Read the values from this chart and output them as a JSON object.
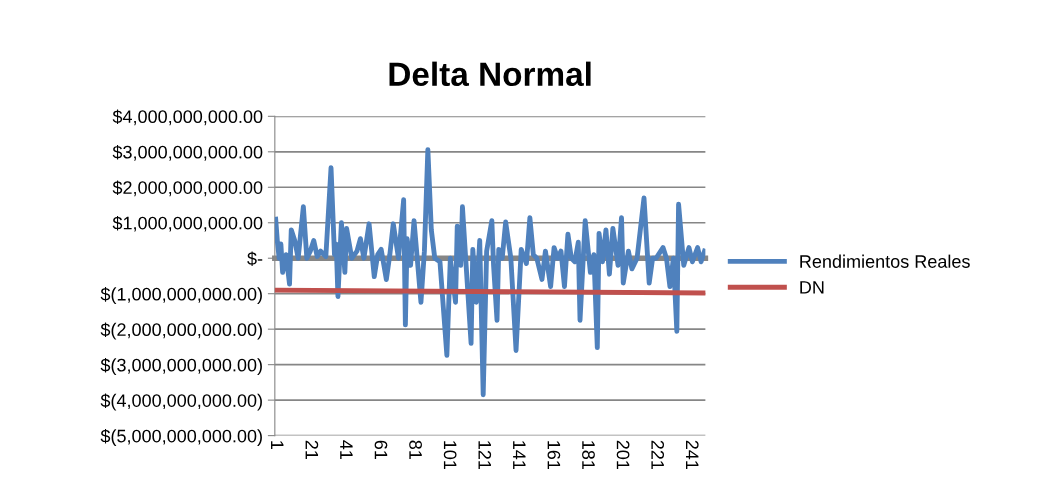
{
  "chart_data": {
    "type": "line",
    "title": "Delta Normal",
    "xlim": [
      0.5,
      249.5
    ],
    "xticks": [
      1,
      21,
      41,
      61,
      81,
      101,
      121,
      141,
      161,
      181,
      201,
      221,
      241
    ],
    "ylim": [
      -5000000000,
      4000000000
    ],
    "yticks": [
      {
        "value": 4000000000,
        "label": "$4,000,000,000.00"
      },
      {
        "value": 3000000000,
        "label": "$3,000,000,000.00"
      },
      {
        "value": 2000000000,
        "label": "$2,000,000,000.00"
      },
      {
        "value": 1000000000,
        "label": "$1,000,000,000.00"
      },
      {
        "value": 0,
        "label": "$-"
      },
      {
        "value": -1000000000,
        "label": "$(1,000,000,000.00)"
      },
      {
        "value": -2000000000,
        "label": "$(2,000,000,000.00)"
      },
      {
        "value": -3000000000,
        "label": "$(3,000,000,000.00)"
      },
      {
        "value": -4000000000,
        "label": "$(4,000,000,000.00)"
      },
      {
        "value": -5000000000,
        "label": "$(5,000,000,000.00)"
      }
    ],
    "grid": "y",
    "legend": "right",
    "marker": "none",
    "line_style": "solid",
    "series": [
      {
        "name": "Rendimientos Reales",
        "color": "#4f81bd",
        "x": [
          1,
          2,
          3,
          4,
          5,
          7,
          9,
          10,
          12,
          14,
          17,
          19,
          21,
          23,
          25,
          27,
          30,
          33,
          35,
          36,
          37,
          39,
          41,
          42,
          45,
          48,
          50,
          52,
          55,
          58,
          60,
          62,
          65,
          67,
          69,
          72,
          75,
          76,
          77,
          79,
          81,
          85,
          87,
          89,
          91,
          93,
          96,
          100,
          102,
          105,
          106,
          108,
          109,
          111,
          114,
          115,
          117,
          119,
          121,
          123,
          126,
          127,
          129,
          130,
          132,
          134,
          137,
          140,
          143,
          146,
          148,
          150,
          152,
          155,
          157,
          160,
          162,
          164,
          166,
          168,
          170,
          172,
          174,
          176,
          177,
          180,
          183,
          185,
          187,
          188,
          190,
          192,
          194,
          196,
          199,
          201,
          202,
          205,
          207,
          210,
          214,
          217,
          219,
          221,
          225,
          227,
          229,
          231,
          233,
          234,
          237,
          240,
          242,
          245,
          247,
          249
        ],
        "values": [
          1100000000,
          450000000,
          0,
          400000000,
          -400000000,
          100000000,
          -730000000,
          800000000,
          500000000,
          0,
          1450000000,
          0,
          200000000,
          500000000,
          50000000,
          200000000,
          50000000,
          2550000000,
          100000000,
          400000000,
          -1080000000,
          1000000000,
          -400000000,
          840000000,
          0,
          200000000,
          550000000,
          0,
          970000000,
          -520000000,
          100000000,
          250000000,
          -600000000,
          100000000,
          970000000,
          0,
          1650000000,
          -1880000000,
          550000000,
          -200000000,
          1060000000,
          -1240000000,
          200000000,
          3060000000,
          800000000,
          0,
          -100000000,
          -2740000000,
          0,
          -1240000000,
          900000000,
          -200000000,
          1450000000,
          -100000000,
          -2400000000,
          250000000,
          -1240000000,
          500000000,
          -3850000000,
          200000000,
          1060000000,
          -200000000,
          -1750000000,
          250000000,
          0,
          1020000000,
          0,
          -2600000000,
          250000000,
          -150000000,
          1140000000,
          100000000,
          0,
          -600000000,
          200000000,
          -800000000,
          300000000,
          0,
          200000000,
          -800000000,
          680000000,
          0,
          -100000000,
          450000000,
          -1750000000,
          1060000000,
          -400000000,
          100000000,
          -2520000000,
          700000000,
          -100000000,
          800000000,
          -450000000,
          840000000,
          -200000000,
          1140000000,
          -700000000,
          200000000,
          -300000000,
          0,
          1700000000,
          -700000000,
          0,
          0,
          300000000,
          0,
          -800000000,
          0,
          -2060000000,
          1520000000,
          -200000000,
          300000000,
          -100000000,
          300000000,
          -100000000,
          200000000
        ]
      },
      {
        "name": "DN",
        "color": "#c0504d",
        "x": [
          1,
          249
        ],
        "values": [
          -900000000,
          -980000000
        ]
      }
    ]
  }
}
